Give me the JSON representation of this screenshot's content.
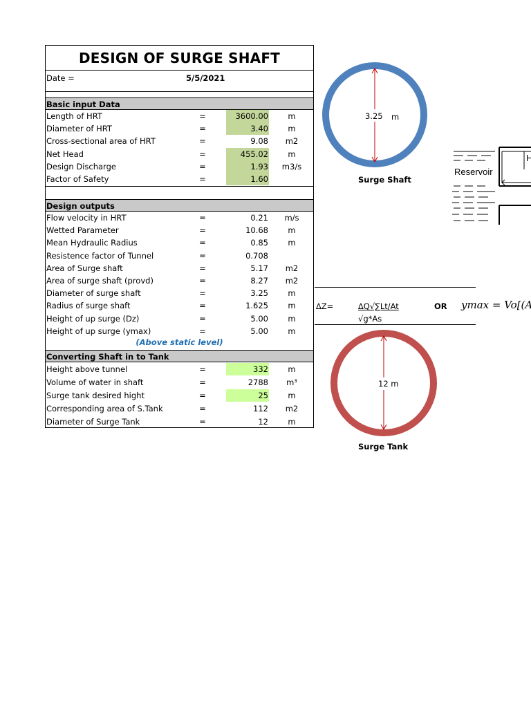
{
  "title": "DESIGN OF SURGE SHAFT",
  "date": {
    "label": "Date =",
    "value": "5/5/2021"
  },
  "basic": {
    "header": "Basic input Data",
    "rows": [
      {
        "label": "Length of HRT",
        "eq": "=",
        "value": "3600.00",
        "unit": "m"
      },
      {
        "label": "Diameter of HRT",
        "eq": "=",
        "value": "3.40",
        "unit": "m"
      },
      {
        "label": "Cross-sectional area of HRT",
        "eq": "=",
        "value": "9.08",
        "unit": "m2"
      },
      {
        "label": "Net Head",
        "eq": "=",
        "value": "455.02",
        "unit": "m"
      },
      {
        "label": "Design Discharge",
        "eq": "=",
        "value": "1.93",
        "unit": "m3/s"
      },
      {
        "label": "Factor of Safety",
        "eq": "=",
        "value": "1.60",
        "unit": ""
      }
    ]
  },
  "outputs": {
    "header": "Design outputs",
    "rows": [
      {
        "label": "Flow velocity in HRT",
        "eq": "=",
        "value": "0.21",
        "unit": "m/s"
      },
      {
        "label": "Wetted Parameter",
        "eq": "=",
        "value": "10.68",
        "unit": "m"
      },
      {
        "label": "Mean Hydraulic Radius",
        "eq": "=",
        "value": "0.85",
        "unit": "m"
      },
      {
        "label": "Resistence factor of Tunnel",
        "eq": "=",
        "value": "0.708",
        "unit": ""
      },
      {
        "label": "Area of Surge shaft",
        "eq": "=",
        "value": "5.17",
        "unit": "m2"
      },
      {
        "label": "Area of surge shaft (provd)",
        "eq": "=",
        "value": "8.27",
        "unit": "m2"
      },
      {
        "label": "Diameter of surge shaft",
        "eq": "=",
        "value": "3.25",
        "unit": "m"
      },
      {
        "label": "Radius of surge shaft",
        "eq": "=",
        "value": "1.625",
        "unit": "m"
      },
      {
        "label": "Height of up surge (Dz)",
        "eq": "=",
        "value": "5.00",
        "unit": "m"
      },
      {
        "label": "Height of up surge (ymax)",
        "eq": "=",
        "value": "5.00",
        "unit": "m"
      }
    ],
    "note": "(Above static level)"
  },
  "tank": {
    "header": "Converting Shaft in to Tank",
    "rows": [
      {
        "label": "Height above tunnel",
        "eq": "=",
        "value": "332",
        "unit": "m"
      },
      {
        "label": "Volume of water in shaft",
        "eq": "=",
        "value": "2788",
        "unit": "m³"
      },
      {
        "label": "Surge tank desired hight",
        "eq": "=",
        "value": "25",
        "unit": "m"
      },
      {
        "label": "Corresponding area of S.Tank",
        "eq": "=",
        "value": "112",
        "unit": "m2"
      },
      {
        "label": "Diameter of Surge Tank",
        "eq": "=",
        "value": "12",
        "unit": "m"
      }
    ]
  },
  "shaft_figure": {
    "dim": "3.25",
    "dim_unit": "m",
    "caption": "Surge Shaft",
    "color": "#4f81bd"
  },
  "tank_figure": {
    "dim": "12 m",
    "caption": "Surge Tank",
    "color": "#c0504d"
  },
  "reservoir": {
    "label": "Reservoir",
    "h_label": "H"
  },
  "formula": {
    "lhs": "∆Z=",
    "numerator": "∆Q√∑Lt/At",
    "denominator": "√g*As",
    "or": "OR",
    "ymax": "ymax = Vo[(A/S"
  },
  "colors": {
    "input_fill": "#c4d79b",
    "tank_fill": "#ccff99",
    "header_fill": "#c9c9c9",
    "note": "#1f6fb2"
  }
}
